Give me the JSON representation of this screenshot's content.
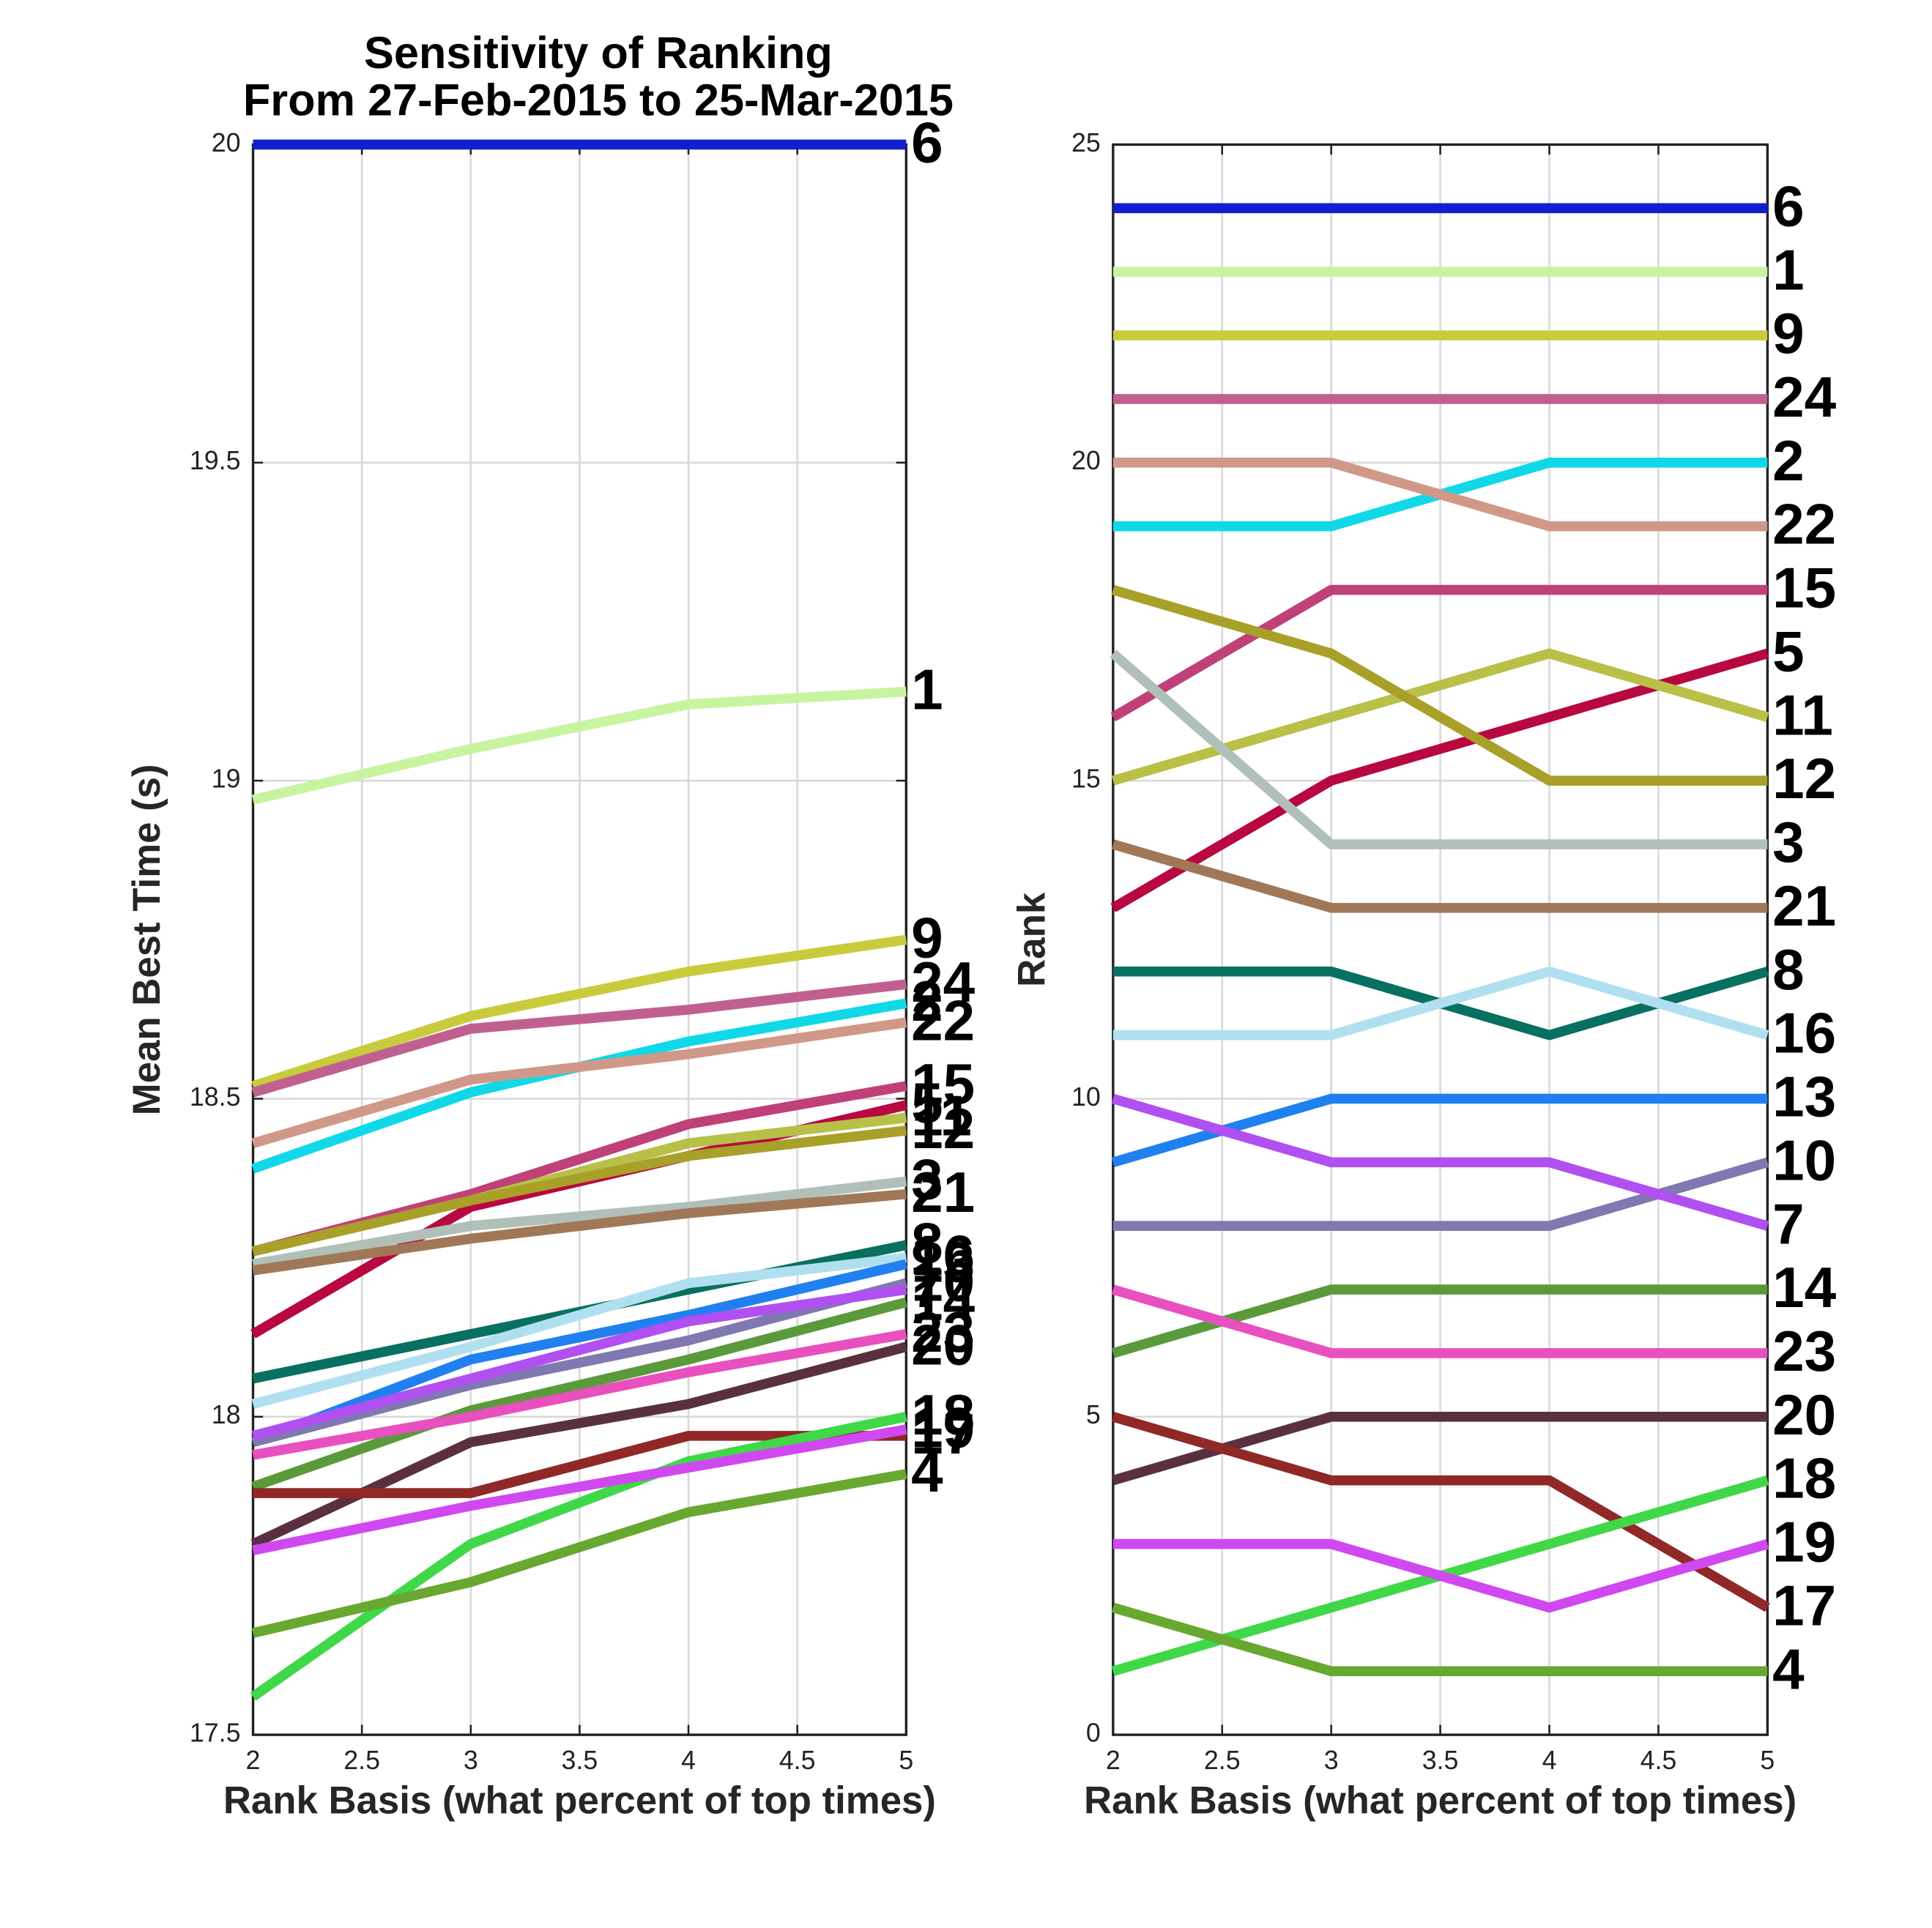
{
  "chart_data": [
    {
      "type": "line",
      "title": "Sensitivity of Ranking",
      "subtitle": "From 27-Feb-2015 to 25-Mar-2015",
      "x_label": "Rank Basis (what percent of top times)",
      "y_label": "Mean Best Time (s)",
      "x": [
        2,
        3,
        4,
        5
      ],
      "xlim": [
        2,
        5
      ],
      "xticks": [
        2,
        2.5,
        3,
        3.5,
        4,
        4.5,
        5
      ],
      "ylim": [
        17.5,
        20
      ],
      "yticks": [
        17.5,
        18,
        18.5,
        19,
        19.5,
        20
      ],
      "grid": true,
      "series": [
        {
          "name": "6",
          "color": "#1020d0",
          "values": [
            20,
            20,
            20,
            20
          ]
        },
        {
          "name": "1",
          "color": "#c8f4a0",
          "values": [
            18.97,
            19.05,
            19.12,
            19.14
          ]
        },
        {
          "name": "9",
          "color": "#c8cc3c",
          "values": [
            18.52,
            18.63,
            18.7,
            18.75
          ]
        },
        {
          "name": "24",
          "color": "#c06090",
          "values": [
            18.51,
            18.61,
            18.64,
            18.68
          ]
        },
        {
          "name": "2",
          "color": "#10d8e8",
          "values": [
            18.39,
            18.51,
            18.59,
            18.65
          ]
        },
        {
          "name": "22",
          "color": "#d09888",
          "values": [
            18.43,
            18.53,
            18.57,
            18.62
          ]
        },
        {
          "name": "15",
          "color": "#c04078",
          "values": [
            18.26,
            18.35,
            18.46,
            18.52
          ]
        },
        {
          "name": "5",
          "color": "#b80840",
          "values": [
            18.13,
            18.33,
            18.41,
            18.49
          ]
        },
        {
          "name": "11",
          "color": "#b8c048",
          "values": [
            18.26,
            18.34,
            18.43,
            18.47
          ]
        },
        {
          "name": "12",
          "color": "#a8a028",
          "values": [
            18.26,
            18.34,
            18.41,
            18.45
          ]
        },
        {
          "name": "3",
          "color": "#b0c0b8",
          "values": [
            18.24,
            18.3,
            18.33,
            18.37
          ]
        },
        {
          "name": "21",
          "color": "#a07858",
          "values": [
            18.23,
            18.28,
            18.32,
            18.35
          ]
        },
        {
          "name": "8",
          "color": "#087060",
          "values": [
            18.06,
            18.13,
            18.2,
            18.27
          ]
        },
        {
          "name": "16",
          "color": "#b0e0f0",
          "values": [
            18.02,
            18.11,
            18.21,
            18.25
          ]
        },
        {
          "name": "13",
          "color": "#2080f0",
          "values": [
            17.96,
            18.09,
            18.16,
            18.24
          ]
        },
        {
          "name": "10",
          "color": "#8078b0",
          "values": [
            17.96,
            18.05,
            18.12,
            18.21
          ]
        },
        {
          "name": "7",
          "color": "#b050f0",
          "values": [
            17.97,
            18.06,
            18.15,
            18.2
          ]
        },
        {
          "name": "14",
          "color": "#5a9a3a",
          "values": [
            17.89,
            18.01,
            18.09,
            18.18
          ]
        },
        {
          "name": "23",
          "color": "#e850c0",
          "values": [
            17.94,
            18.0,
            18.07,
            18.13
          ]
        },
        {
          "name": "20",
          "color": "#5a3040",
          "values": [
            17.8,
            17.96,
            18.02,
            18.11
          ]
        },
        {
          "name": "17",
          "color": "#902828",
          "values": [
            17.88,
            17.88,
            17.97,
            17.97
          ]
        },
        {
          "name": "18",
          "color": "#40d848",
          "values": [
            17.56,
            17.8,
            17.93,
            18.0
          ]
        },
        {
          "name": "19",
          "color": "#d048f0",
          "values": [
            17.79,
            17.86,
            17.92,
            17.98
          ]
        },
        {
          "name": "4",
          "color": "#68a830",
          "values": [
            17.66,
            17.74,
            17.85,
            17.91
          ]
        }
      ]
    },
    {
      "type": "line",
      "x_label": "Rank Basis (what percent of top times)",
      "y_label": "Rank",
      "x": [
        2,
        3,
        4,
        5
      ],
      "xlim": [
        2,
        5
      ],
      "xticks": [
        2,
        2.5,
        3,
        3.5,
        4,
        4.5,
        5
      ],
      "ylim": [
        0,
        25
      ],
      "yticks": [
        0,
        5,
        10,
        15,
        20,
        25
      ],
      "grid": true,
      "series": [
        {
          "name": "6",
          "color": "#1020d0",
          "values": [
            24,
            24,
            24,
            24
          ]
        },
        {
          "name": "1",
          "color": "#c8f4a0",
          "values": [
            23,
            23,
            23,
            23
          ]
        },
        {
          "name": "9",
          "color": "#c8cc3c",
          "values": [
            22,
            22,
            22,
            22
          ]
        },
        {
          "name": "24",
          "color": "#c06090",
          "values": [
            21,
            21,
            21,
            21
          ]
        },
        {
          "name": "2",
          "color": "#10d8e8",
          "values": [
            19,
            19,
            20,
            20
          ]
        },
        {
          "name": "22",
          "color": "#d09888",
          "values": [
            20,
            20,
            19,
            19
          ]
        },
        {
          "name": "15",
          "color": "#c04078",
          "values": [
            16,
            18,
            18,
            18
          ]
        },
        {
          "name": "5",
          "color": "#b80840",
          "values": [
            13,
            15,
            16,
            17
          ]
        },
        {
          "name": "11",
          "color": "#b8c048",
          "values": [
            15,
            16,
            17,
            16
          ]
        },
        {
          "name": "12",
          "color": "#a8a028",
          "values": [
            18,
            17,
            15,
            15
          ]
        },
        {
          "name": "3",
          "color": "#b0c0b8",
          "values": [
            17,
            14,
            14,
            14
          ]
        },
        {
          "name": "21",
          "color": "#a07858",
          "values": [
            14,
            13,
            13,
            13
          ]
        },
        {
          "name": "8",
          "color": "#087060",
          "values": [
            12,
            12,
            11,
            12
          ]
        },
        {
          "name": "16",
          "color": "#b0e0f0",
          "values": [
            11,
            11,
            12,
            11
          ]
        },
        {
          "name": "13",
          "color": "#2080f0",
          "values": [
            9,
            10,
            10,
            10
          ]
        },
        {
          "name": "10",
          "color": "#8078b0",
          "values": [
            8,
            8,
            8,
            9
          ]
        },
        {
          "name": "7",
          "color": "#b050f0",
          "values": [
            10,
            9,
            9,
            8
          ]
        },
        {
          "name": "14",
          "color": "#5a9a3a",
          "values": [
            6,
            7,
            7,
            7
          ]
        },
        {
          "name": "23",
          "color": "#e850c0",
          "values": [
            7,
            6,
            6,
            6
          ]
        },
        {
          "name": "20",
          "color": "#5a3040",
          "values": [
            4,
            5,
            5,
            5
          ]
        },
        {
          "name": "17",
          "color": "#902828",
          "values": [
            5,
            4,
            4,
            2
          ]
        },
        {
          "name": "18",
          "color": "#40d848",
          "values": [
            1,
            2,
            3,
            4
          ]
        },
        {
          "name": "19",
          "color": "#d048f0",
          "values": [
            3,
            3,
            2,
            3
          ]
        },
        {
          "name": "4",
          "color": "#68a830",
          "values": [
            2,
            1,
            1,
            1
          ]
        }
      ]
    }
  ]
}
